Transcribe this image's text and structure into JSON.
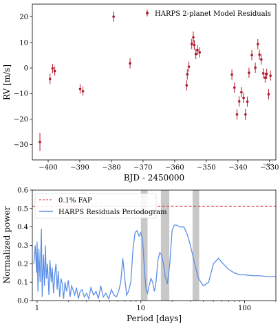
{
  "chart_data": [
    {
      "type": "scatter",
      "xlabel": "BJD - 2450000",
      "ylabel": "RV [m/s]",
      "x_offset_label": "-2.44e6",
      "xlim": [
        -405,
        -328
      ],
      "ylim": [
        -36,
        25
      ],
      "xticks": [
        -400,
        -390,
        -380,
        -370,
        -360,
        -350,
        -340,
        -330
      ],
      "yticks": [
        -30,
        -20,
        -10,
        0,
        10,
        20
      ],
      "xtick_labels": [
        "−400",
        "−390",
        "−380",
        "−370",
        "−360",
        "−350",
        "−340",
        "−330"
      ],
      "ytick_labels": [
        "−30",
        "−20",
        "−10",
        "0",
        "10",
        "20"
      ],
      "legend_position": "top-right",
      "series": [
        {
          "name": "HARPS 2-planet Model Residuals",
          "color": "#b2182b",
          "x": [
            -402.6,
            -399.4,
            -398.6,
            -397.9,
            -389.9,
            -389.0,
            -379.3,
            -374.1,
            -356.2,
            -356.0,
            -355.5,
            -354.6,
            -354.1,
            -353.8,
            -353.3,
            -352.8,
            -352.1,
            -341.9,
            -341.1,
            -340.3,
            -339.6,
            -338.9,
            -338.2,
            -337.6,
            -337.0,
            -336.5,
            -335.6,
            -334.5,
            -333.7,
            -333.2,
            -332.6,
            -332.0,
            -331.4,
            -330.9,
            -330.3,
            -329.7
          ],
          "y": [
            -29.0,
            -4.3,
            -0.2,
            -1.2,
            -8.2,
            -9.1,
            20.1,
            1.8,
            -6.8,
            -2.5,
            0.5,
            9.4,
            12.0,
            9.0,
            5.5,
            7.0,
            6.1,
            -2.6,
            -7.7,
            -18.2,
            -13.1,
            -9.5,
            -11.7,
            -18.2,
            -13.2,
            -1.9,
            5.0,
            0.1,
            9.3,
            5.2,
            3.3,
            -2.1,
            -3.8,
            -2.3,
            -10.3,
            -3.0
          ],
          "err": [
            3.5,
            2.0,
            1.8,
            1.8,
            1.8,
            1.8,
            2.0,
            2.0,
            2.0,
            2.0,
            2.0,
            2.0,
            2.3,
            2.0,
            2.0,
            2.0,
            2.0,
            2.0,
            2.0,
            2.0,
            2.0,
            2.0,
            2.0,
            2.2,
            2.0,
            2.0,
            2.0,
            2.0,
            2.0,
            2.0,
            2.0,
            2.0,
            2.0,
            2.0,
            2.0,
            2.0
          ]
        }
      ]
    },
    {
      "type": "line",
      "xlabel": "Period [days]",
      "ylabel": "Normalized power",
      "xscale": "log",
      "xlim": [
        0.9,
        200
      ],
      "ylim": [
        0,
        0.6
      ],
      "yticks": [
        0.0,
        0.1,
        0.2,
        0.3,
        0.4,
        0.5,
        0.6
      ],
      "ytick_labels": [
        "0.0",
        "0.1",
        "0.2",
        "0.3",
        "0.4",
        "0.5",
        "0.6"
      ],
      "xticks": [
        1,
        10,
        100
      ],
      "xtick_labels": [
        "1",
        "10",
        "100"
      ],
      "legend_position": "top-left",
      "fap": {
        "name": "0.1% FAP",
        "value": 0.513,
        "color": "#d62728"
      },
      "shaded_bands": [
        [
          10,
          11.6
        ],
        [
          15.6,
          18.8
        ],
        [
          31.5,
          36.5
        ]
      ],
      "shade_color": "#c8c8c8",
      "series": [
        {
          "name": "HARPS Residuals Periodogram",
          "color": "#5b8fe6",
          "x": [
            0.93,
            0.96,
            0.99,
            1.0,
            1.02,
            1.04,
            1.07,
            1.1,
            1.12,
            1.15,
            1.18,
            1.2,
            1.23,
            1.26,
            1.3,
            1.33,
            1.37,
            1.4,
            1.44,
            1.48,
            1.52,
            1.56,
            1.6,
            1.65,
            1.7,
            1.75,
            1.8,
            1.86,
            1.92,
            2.0,
            2.08,
            2.15,
            2.22,
            2.3,
            2.4,
            2.5,
            2.6,
            2.72,
            2.85,
            3.0,
            3.15,
            3.3,
            3.5,
            3.7,
            3.9,
            4.1,
            4.35,
            4.6,
            4.9,
            5.2,
            5.5,
            5.8,
            6.1,
            6.4,
            6.7,
            7.0,
            7.3,
            7.6,
            8.0,
            8.4,
            8.8,
            9.2,
            9.6,
            10.0,
            10.4,
            10.8,
            11.2,
            11.6,
            12.0,
            12.5,
            13.0,
            13.5,
            14.0,
            14.6,
            15.2,
            15.8,
            16.5,
            17.2,
            18.0,
            19.0,
            20.0,
            21.0,
            22.0,
            24.0,
            26.0,
            28.0,
            30.0,
            33.0,
            36.0,
            40.0,
            45.0,
            50.0,
            56.0,
            62.0,
            70.0,
            80.0,
            90.0,
            100.0,
            120.0,
            140.0,
            170.0,
            200.0
          ],
          "y": [
            0.2,
            0.3,
            0.15,
            0.32,
            0.05,
            0.28,
            0.1,
            0.39,
            0.02,
            0.25,
            0.08,
            0.3,
            0.12,
            0.2,
            0.03,
            0.22,
            0.1,
            0.18,
            0.04,
            0.14,
            0.2,
            0.06,
            0.16,
            0.02,
            0.12,
            0.09,
            0.01,
            0.1,
            0.05,
            0.11,
            0.02,
            0.08,
            0.06,
            0.03,
            0.07,
            0.01,
            0.05,
            0.06,
            0.02,
            0.04,
            0.01,
            0.07,
            0.03,
            0.05,
            0.01,
            0.08,
            0.02,
            0.04,
            0.01,
            0.06,
            0.03,
            0.02,
            0.05,
            0.1,
            0.23,
            0.12,
            0.03,
            0.05,
            0.1,
            0.28,
            0.37,
            0.38,
            0.35,
            0.37,
            0.33,
            0.18,
            0.06,
            0.04,
            0.08,
            0.12,
            0.1,
            0.05,
            0.1,
            0.22,
            0.26,
            0.25,
            0.2,
            0.13,
            0.09,
            0.2,
            0.38,
            0.41,
            0.41,
            0.4,
            0.4,
            0.36,
            0.3,
            0.2,
            0.12,
            0.08,
            0.1,
            0.2,
            0.23,
            0.2,
            0.17,
            0.15,
            0.14,
            0.14,
            0.135,
            0.135,
            0.13,
            0.13
          ]
        }
      ]
    }
  ]
}
